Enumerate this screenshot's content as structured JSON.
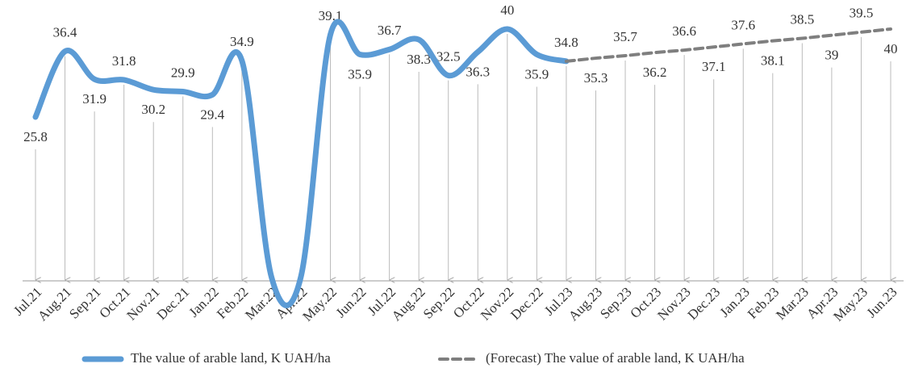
{
  "chart_data": {
    "type": "line",
    "categories": [
      "Jul.21",
      "Aug.21",
      "Sep.21",
      "Oct.21",
      "Nov.21",
      "Dec.21",
      "Jan.22",
      "Feb.22",
      "Mar.22",
      "Apr.22",
      "May.22",
      "Jun.22",
      "Jul.22",
      "Aug.22",
      "Sep.22",
      "Oct.22",
      "Nov.22",
      "Dec.22",
      "Jul.23",
      "Aug.23",
      "Sep.23",
      "Oct.23",
      "Nov.23",
      "Dec.23",
      "Jan.23",
      "Feb.23",
      "Mar.23",
      "Apr.23",
      "May.23",
      "Jun.23"
    ],
    "series": [
      {
        "name": "The value of arable land, K UAH/ha",
        "color": "#5b9bd5",
        "dashed": false,
        "values": [
          25.8,
          36.4,
          31.9,
          31.8,
          30.2,
          29.9,
          29.4,
          34.9,
          0,
          0,
          39.1,
          35.9,
          36.7,
          38.3,
          32.5,
          36.3,
          40,
          35.9,
          34.8,
          null,
          null,
          null,
          null,
          null,
          null,
          null,
          null,
          null,
          null,
          null
        ],
        "value_labels": [
          "25.8",
          "36.4",
          "31.9",
          "31.8",
          "30.2",
          "29.9",
          "29.4",
          "34.9",
          null,
          null,
          "39.1",
          "35.9",
          "36.7",
          "38.3",
          "32.5",
          "36.3",
          "40",
          "35.9",
          "34.8",
          null,
          null,
          null,
          null,
          null,
          null,
          null,
          null,
          null,
          null,
          null
        ]
      },
      {
        "name": "(Forecast) The value of arable land, K UAH/ha",
        "color": "#7f7f7f",
        "dashed": true,
        "values": [
          null,
          null,
          null,
          null,
          null,
          null,
          null,
          null,
          null,
          null,
          null,
          null,
          null,
          null,
          null,
          null,
          null,
          null,
          34.8,
          35.3,
          35.7,
          36.2,
          36.6,
          37.1,
          37.6,
          38.1,
          38.5,
          39,
          39.5,
          40
        ],
        "value_labels": [
          null,
          null,
          null,
          null,
          null,
          null,
          null,
          null,
          null,
          null,
          null,
          null,
          null,
          null,
          null,
          null,
          null,
          null,
          null,
          "35.3",
          "35.7",
          "36.2",
          "36.6",
          "37.1",
          "37.6",
          "38.1",
          "38.5",
          "39",
          "39.5",
          "40"
        ]
      }
    ],
    "ylim": [
      0,
      40
    ]
  }
}
